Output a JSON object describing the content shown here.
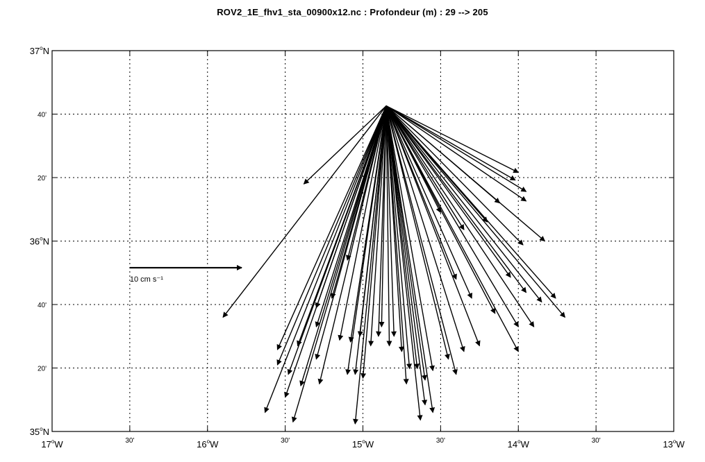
{
  "chart_data": {
    "type": "vector-field",
    "title": "ROV2_1E_fhv1_sta_00900x12.nc : Profondeur (m) : 29 --> 205",
    "xlim": [
      -17,
      -13
    ],
    "ylim": [
      35,
      37
    ],
    "grid": true,
    "x_ticks": [
      {
        "value": -17,
        "deg": "17",
        "suffix": "W",
        "minutes": ""
      },
      {
        "value": -16.5,
        "deg": "",
        "suffix": "",
        "minutes": "30'"
      },
      {
        "value": -16,
        "deg": "16",
        "suffix": "W",
        "minutes": ""
      },
      {
        "value": -15.5,
        "deg": "",
        "suffix": "",
        "minutes": "30'"
      },
      {
        "value": -15,
        "deg": "15",
        "suffix": "W",
        "minutes": ""
      },
      {
        "value": -14.5,
        "deg": "",
        "suffix": "",
        "minutes": "30'"
      },
      {
        "value": -14,
        "deg": "14",
        "suffix": "W",
        "minutes": ""
      },
      {
        "value": -13.5,
        "deg": "",
        "suffix": "",
        "minutes": "30'"
      },
      {
        "value": -13,
        "deg": "13",
        "suffix": "W",
        "minutes": ""
      }
    ],
    "y_ticks": [
      {
        "value": 37,
        "deg": "37",
        "suffix": "N",
        "minutes": ""
      },
      {
        "value": 36.6667,
        "deg": "",
        "suffix": "",
        "minutes": "40'"
      },
      {
        "value": 36.3333,
        "deg": "",
        "suffix": "",
        "minutes": "20'"
      },
      {
        "value": 36,
        "deg": "36",
        "suffix": "N",
        "minutes": ""
      },
      {
        "value": 35.6667,
        "deg": "",
        "suffix": "",
        "minutes": "40'"
      },
      {
        "value": 35.3333,
        "deg": "",
        "suffix": "",
        "minutes": "20'"
      },
      {
        "value": 35,
        "deg": "35",
        "suffix": "N",
        "minutes": ""
      }
    ],
    "origin": {
      "lon": -14.85,
      "lat": 36.71
    },
    "vector_tips": [
      [
        -14.0,
        36.36
      ],
      [
        -14.02,
        36.32
      ],
      [
        -13.95,
        36.26
      ],
      [
        -13.95,
        36.21
      ],
      [
        -13.83,
        36.0
      ],
      [
        -13.97,
        35.98
      ],
      [
        -14.12,
        36.2
      ],
      [
        -14.2,
        36.1
      ],
      [
        -14.35,
        36.06
      ],
      [
        -14.5,
        36.15
      ],
      [
        -14.05,
        35.81
      ],
      [
        -13.95,
        35.73
      ],
      [
        -13.85,
        35.68
      ],
      [
        -13.76,
        35.7
      ],
      [
        -13.7,
        35.6
      ],
      [
        -13.9,
        35.55
      ],
      [
        -14.0,
        35.55
      ],
      [
        -14.0,
        35.42
      ],
      [
        -14.15,
        35.62
      ],
      [
        -14.3,
        35.7
      ],
      [
        -14.4,
        35.8
      ],
      [
        -14.25,
        35.45
      ],
      [
        -14.35,
        35.42
      ],
      [
        -14.4,
        35.3
      ],
      [
        -14.45,
        35.38
      ],
      [
        -14.55,
        35.32
      ],
      [
        -14.6,
        35.27
      ],
      [
        -14.65,
        35.33
      ],
      [
        -14.75,
        35.42
      ],
      [
        -14.55,
        35.1
      ],
      [
        -14.6,
        35.14
      ],
      [
        -14.63,
        35.06
      ],
      [
        -14.7,
        35.33
      ],
      [
        -14.72,
        35.25
      ],
      [
        -14.8,
        35.5
      ],
      [
        -14.83,
        35.45
      ],
      [
        -14.88,
        35.55
      ],
      [
        -14.9,
        35.5
      ],
      [
        -14.95,
        35.45
      ],
      [
        -15.0,
        35.28
      ],
      [
        -15.05,
        35.3
      ],
      [
        -15.05,
        35.04
      ],
      [
        -15.1,
        35.3
      ],
      [
        -15.08,
        35.47
      ],
      [
        -15.02,
        35.5
      ],
      [
        -15.15,
        35.48
      ],
      [
        -15.3,
        35.38
      ],
      [
        -15.28,
        35.25
      ],
      [
        -15.4,
        35.24
      ],
      [
        -15.48,
        35.3
      ],
      [
        -15.5,
        35.18
      ],
      [
        -15.45,
        35.05
      ],
      [
        -15.55,
        35.35
      ],
      [
        -15.42,
        35.45
      ],
      [
        -15.3,
        35.55
      ],
      [
        -15.3,
        35.65
      ],
      [
        -15.63,
        35.1
      ],
      [
        -15.55,
        35.43
      ],
      [
        -15.9,
        35.6
      ],
      [
        -15.38,
        36.3
      ],
      [
        -15.2,
        35.7
      ],
      [
        -15.1,
        35.9
      ]
    ],
    "scale_arrow": {
      "lon_start": -16.5,
      "lat": 35.86,
      "lon_end": -15.78,
      "speed": 10,
      "label": "10 cm s⁻¹"
    }
  }
}
